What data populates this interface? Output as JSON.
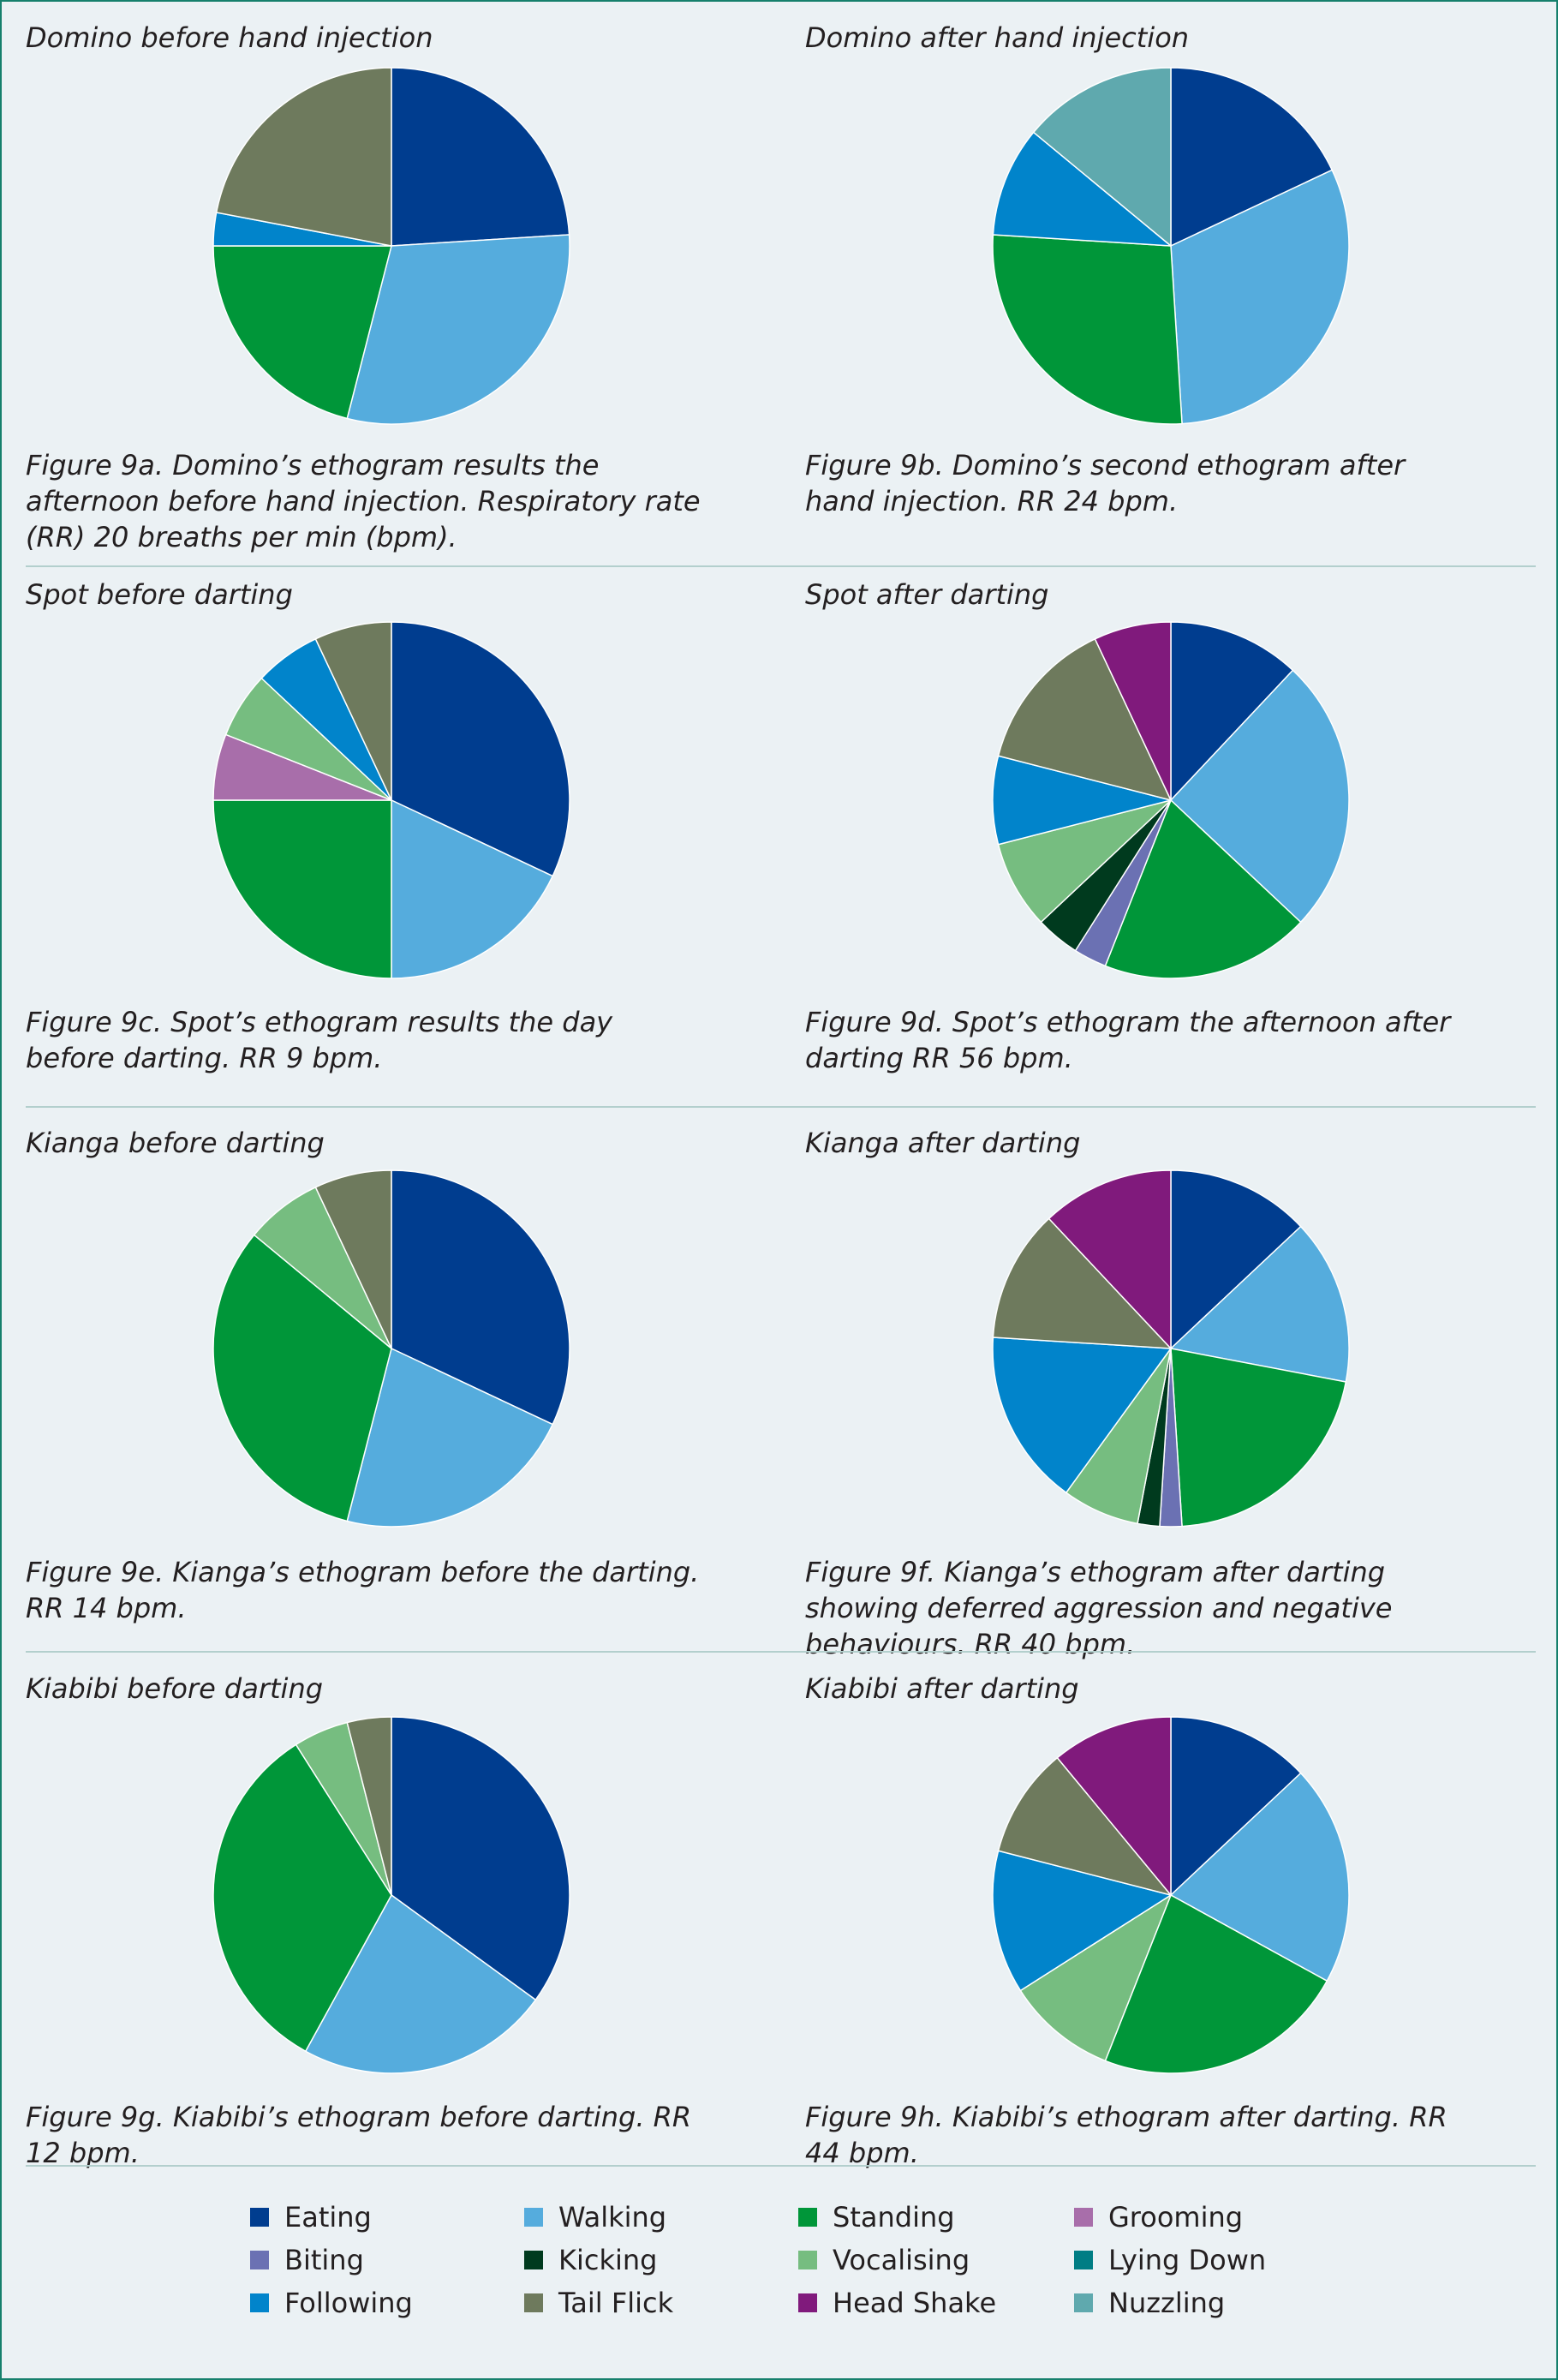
{
  "legend": [
    {
      "name": "Eating",
      "color": "#003d8f"
    },
    {
      "name": "Walking",
      "color": "#55acdd"
    },
    {
      "name": "Standing",
      "color": "#009639"
    },
    {
      "name": "Grooming",
      "color": "#a86eaa"
    },
    {
      "name": "Biting",
      "color": "#6b71b3"
    },
    {
      "name": "Kicking",
      "color": "#003a1e"
    },
    {
      "name": "Vocalising",
      "color": "#76bd80"
    },
    {
      "name": "Lying Down",
      "color": "#007d84"
    },
    {
      "name": "Following",
      "color": "#0184cb"
    },
    {
      "name": "Tail Flick",
      "color": "#6e7a5d"
    },
    {
      "name": "Head Shake",
      "color": "#801a7c"
    },
    {
      "name": "Nuzzling",
      "color": "#5fa9ae"
    }
  ],
  "chart_data": [
    {
      "type": "pie",
      "title": "Domino before hand injection",
      "caption": "Figure 9a. Domino’s ethogram results the afternoon before hand injection. Respiratory rate (RR) 20 breaths per min (bpm).",
      "slices": [
        {
          "category": "Eating",
          "value": 24
        },
        {
          "category": "Walking",
          "value": 30
        },
        {
          "category": "Standing",
          "value": 21
        },
        {
          "category": "Following",
          "value": 3
        },
        {
          "category": "Tail Flick",
          "value": 22
        }
      ]
    },
    {
      "type": "pie",
      "title": "Domino after hand injection",
      "caption": "Figure 9b. Domino’s second ethogram after hand injection. RR 24 bpm.",
      "slices": [
        {
          "category": "Eating",
          "value": 18
        },
        {
          "category": "Walking",
          "value": 31
        },
        {
          "category": "Standing",
          "value": 27
        },
        {
          "category": "Following",
          "value": 10
        },
        {
          "category": "Nuzzling",
          "value": 14
        }
      ]
    },
    {
      "type": "pie",
      "title": "Spot before darting",
      "caption": "Figure 9c. Spot’s ethogram results the day before darting. RR 9 bpm.",
      "slices": [
        {
          "category": "Eating",
          "value": 32
        },
        {
          "category": "Walking",
          "value": 18
        },
        {
          "category": "Standing",
          "value": 25
        },
        {
          "category": "Grooming",
          "value": 6
        },
        {
          "category": "Vocalising",
          "value": 6
        },
        {
          "category": "Following",
          "value": 6
        },
        {
          "category": "Tail Flick",
          "value": 7
        }
      ]
    },
    {
      "type": "pie",
      "title": "Spot after darting",
      "caption": "Figure 9d. Spot’s ethogram the afternoon after darting RR 56 bpm.",
      "slices": [
        {
          "category": "Eating",
          "value": 12
        },
        {
          "category": "Walking",
          "value": 25
        },
        {
          "category": "Standing",
          "value": 19
        },
        {
          "category": "Biting",
          "value": 3
        },
        {
          "category": "Kicking",
          "value": 4
        },
        {
          "category": "Vocalising",
          "value": 8
        },
        {
          "category": "Following",
          "value": 8
        },
        {
          "category": "Tail Flick",
          "value": 14
        },
        {
          "category": "Head Shake",
          "value": 7
        }
      ]
    },
    {
      "type": "pie",
      "title": "Kianga before darting",
      "caption": "Figure 9e. Kianga’s ethogram before the darting. RR 14 bpm.",
      "slices": [
        {
          "category": "Eating",
          "value": 32
        },
        {
          "category": "Walking",
          "value": 22
        },
        {
          "category": "Standing",
          "value": 32
        },
        {
          "category": "Vocalising",
          "value": 7
        },
        {
          "category": "Tail Flick",
          "value": 7
        }
      ]
    },
    {
      "type": "pie",
      "title": "Kianga after darting",
      "caption": "Figure 9f. Kianga’s ethogram after darting showing deferred aggression and negative behaviours. RR 40 bpm.",
      "slices": [
        {
          "category": "Eating",
          "value": 13
        },
        {
          "category": "Walking",
          "value": 15
        },
        {
          "category": "Standing",
          "value": 21
        },
        {
          "category": "Biting",
          "value": 2
        },
        {
          "category": "Kicking",
          "value": 2
        },
        {
          "category": "Vocalising",
          "value": 7
        },
        {
          "category": "Following",
          "value": 16
        },
        {
          "category": "Tail Flick",
          "value": 12
        },
        {
          "category": "Head Shake",
          "value": 12
        }
      ]
    },
    {
      "type": "pie",
      "title": "Kiabibi before darting",
      "caption": "Figure 9g. Kiabibi’s ethogram before darting. RR 12 bpm.",
      "slices": [
        {
          "category": "Eating",
          "value": 35
        },
        {
          "category": "Walking",
          "value": 23
        },
        {
          "category": "Standing",
          "value": 33
        },
        {
          "category": "Vocalising",
          "value": 5
        },
        {
          "category": "Tail Flick",
          "value": 4
        }
      ]
    },
    {
      "type": "pie",
      "title": "Kiabibi after darting",
      "caption": "Figure 9h. Kiabibi’s ethogram after darting. RR 44 bpm.",
      "slices": [
        {
          "category": "Eating",
          "value": 13
        },
        {
          "category": "Walking",
          "value": 20
        },
        {
          "category": "Standing",
          "value": 23
        },
        {
          "category": "Vocalising",
          "value": 10
        },
        {
          "category": "Following",
          "value": 13
        },
        {
          "category": "Tail Flick",
          "value": 10
        },
        {
          "category": "Head Shake",
          "value": 11
        }
      ]
    }
  ]
}
